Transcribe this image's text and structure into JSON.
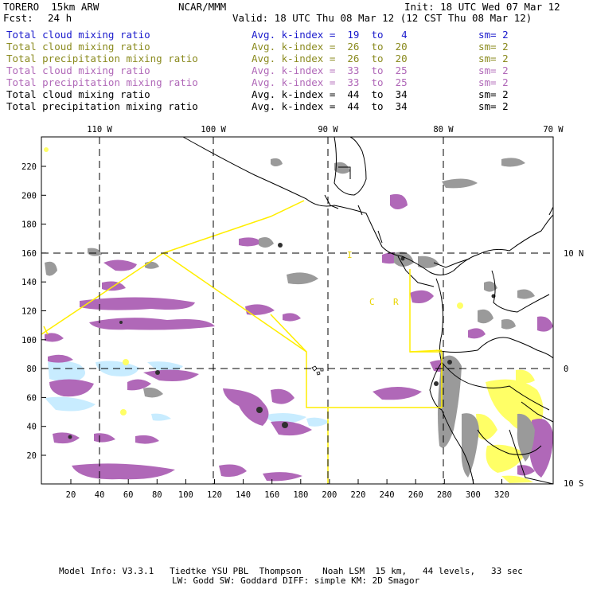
{
  "header": {
    "model": "TORERO  15km ARW",
    "org": "NCAR/MMM",
    "init": "Init: 18 UTC Wed 07 Mar 12",
    "fcst_label": "Fcst:",
    "fcst_value": "24 h",
    "valid": "Valid: 18 UTC Thu 08 Mar 12 (12 CST Thu 08 Mar 12)"
  },
  "legend": [
    {
      "var": "Total cloud mixing ratio",
      "idx": "Avg. k-index =  19  to   4",
      "sm": "sm= 2",
      "color": "#1a1acc"
    },
    {
      "var": "Total cloud mixing ratio",
      "idx": "Avg. k-index =  26  to  20",
      "sm": "sm= 2",
      "color": "#8a8a1e"
    },
    {
      "var": "Total precipitation mixing ratio",
      "idx": "Avg. k-index =  26  to  20",
      "sm": "sm= 2",
      "color": "#8a8a1e"
    },
    {
      "var": "Total cloud mixing ratio",
      "idx": "Avg. k-index =  33  to  25",
      "sm": "sm= 2",
      "color": "#b068b8"
    },
    {
      "var": "Total precipitation mixing ratio",
      "idx": "Avg. k-index =  33  to  25",
      "sm": "sm= 2",
      "color": "#b068b8"
    },
    {
      "var": "Total cloud mixing ratio",
      "idx": "Avg. k-index =  44  to  34",
      "sm": "sm= 2",
      "color": "#000000"
    },
    {
      "var": "Total precipitation mixing ratio",
      "idx": "Avg. k-index =  44  to  34",
      "sm": "sm= 2",
      "color": "#000000"
    }
  ],
  "map": {
    "x_ticks": [
      "20",
      "40",
      "60",
      "80",
      "100",
      "120",
      "140",
      "160",
      "180",
      "200",
      "220",
      "240",
      "260",
      "280",
      "300",
      "320"
    ],
    "y_ticks": [
      "20",
      "40",
      "60",
      "80",
      "100",
      "120",
      "140",
      "160",
      "180",
      "200",
      "220"
    ],
    "lon_labels": [
      "110 W",
      "100 W",
      "90 W",
      "80 W",
      "70 W"
    ],
    "lat_labels": [
      "10 N",
      "0",
      "10 S"
    ],
    "region_labels": [
      "I",
      "C",
      "R"
    ],
    "colors": {
      "light_blue": "#c8ecff",
      "olive": "#ffff66",
      "purple": "#b068b8",
      "gray": "#9a9a9a",
      "dark": "#303030",
      "yellow_line": "#ffee00"
    }
  },
  "footer": {
    "line1": "Model Info: V3.3.1   Tiedtke YSU PBL  Thompson    Noah LSM  15 km,   44 levels,   33 sec",
    "line2": "LW: Godd SW: Goddard DIFF: simple KM: 2D Smagor"
  }
}
